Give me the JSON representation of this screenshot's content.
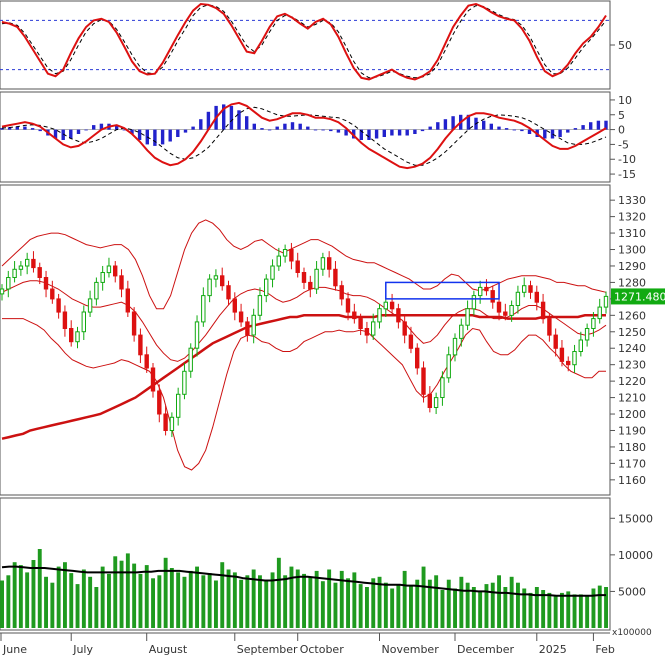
{
  "chart_data": [
    {
      "type": "line",
      "panel": "stochastic",
      "y_ticks": [
        50
      ],
      "ylim": [
        0,
        100
      ],
      "reference_lines": [
        20,
        80
      ],
      "series": [
        {
          "values": [
            78,
            76,
            72,
            60,
            45,
            30,
            15,
            12,
            20,
            40,
            58,
            72,
            80,
            82,
            78,
            65,
            48,
            30,
            18,
            14,
            15,
            28,
            45,
            62,
            78,
            92,
            100,
            99,
            95,
            88,
            74,
            58,
            42,
            40,
            55,
            72,
            85,
            88,
            83,
            76,
            70,
            78,
            82,
            75,
            60,
            40,
            22,
            10,
            8,
            12,
            16,
            20,
            14,
            10,
            8,
            12,
            18,
            32,
            52,
            72,
            86,
            98,
            100,
            96,
            90,
            85,
            82,
            80,
            70,
            55,
            35,
            18,
            12,
            16,
            26,
            40,
            52,
            60,
            72,
            86
          ]
        },
        {
          "values": [
            76,
            77,
            74,
            64,
            50,
            36,
            22,
            15,
            18,
            32,
            50,
            66,
            76,
            81,
            79,
            69,
            54,
            38,
            24,
            16,
            15,
            23,
            38,
            55,
            70,
            86,
            96,
            99,
            97,
            91,
            79,
            64,
            49,
            42,
            50,
            66,
            80,
            86,
            84,
            78,
            72,
            75,
            80,
            77,
            66,
            48,
            30,
            16,
            10,
            11,
            14,
            18,
            15,
            12,
            10,
            11,
            15,
            26,
            44,
            63,
            79,
            92,
            98,
            97,
            92,
            87,
            83,
            81,
            74,
            61,
            43,
            26,
            15,
            15,
            22,
            34,
            47,
            57,
            68,
            80
          ],
          "style": "dashed"
        }
      ]
    },
    {
      "type": "bar",
      "panel": "macd",
      "y_ticks": [
        10,
        5,
        0,
        -5,
        -10,
        -15
      ],
      "ylim": [
        -17,
        12
      ],
      "series": [
        {
          "values": [
            0.5,
            0.8,
            1,
            1,
            0.5,
            -0.5,
            -2,
            -3,
            -3.5,
            -3,
            -1.5,
            0,
            1.5,
            2,
            2,
            1.5,
            0,
            -1.5,
            -3.5,
            -5,
            -5.5,
            -5,
            -4,
            -2.5,
            -1,
            1,
            3.5,
            6,
            8,
            8.5,
            8,
            6.5,
            4.5,
            2,
            0.5,
            0,
            1,
            2,
            2.5,
            2,
            1,
            0,
            0,
            -0.5,
            -1,
            -2,
            -3,
            -3.5,
            -3.5,
            -3,
            -2.5,
            -2,
            -2,
            -2,
            -1.5,
            -0.5,
            1,
            2.5,
            3.5,
            4.5,
            5,
            5,
            4,
            3,
            2,
            1,
            0.5,
            0,
            -0.5,
            -1.5,
            -2.5,
            -3,
            -3,
            -2.5,
            -1,
            0.5,
            1.5,
            2.5,
            3,
            3
          ]
        },
        {
          "values": [
            1,
            1.5,
            2,
            2.5,
            2,
            1,
            -1,
            -3,
            -5,
            -6,
            -5.5,
            -4,
            -2,
            0,
            1,
            1.5,
            0.5,
            -1.5,
            -4,
            -7,
            -9.5,
            -11,
            -12,
            -11.5,
            -10,
            -7.5,
            -4,
            0,
            4,
            7,
            8.5,
            9,
            8,
            6,
            4,
            3,
            3.5,
            4.5,
            5.5,
            5.5,
            5,
            4,
            4,
            3.5,
            2.5,
            0.5,
            -2,
            -4.5,
            -6.5,
            -8,
            -9.5,
            -11,
            -12.5,
            -13,
            -12.5,
            -11.5,
            -9.5,
            -6.5,
            -3,
            0,
            2.5,
            4.5,
            5.5,
            5.5,
            5,
            4,
            3.5,
            3,
            2,
            0.5,
            -1.5,
            -3.5,
            -5.5,
            -6.5,
            -6.5,
            -5.5,
            -4,
            -2.5,
            -1,
            0.5
          ]
        },
        {
          "values": [
            0.5,
            0.7,
            1,
            1.4,
            1.6,
            1.4,
            0.8,
            0,
            -1.5,
            -3,
            -4,
            -4.5,
            -4,
            -3,
            -1.5,
            0,
            0.5,
            0,
            -1,
            -2.5,
            -4,
            -6,
            -8,
            -9.5,
            -10,
            -9.5,
            -8,
            -6,
            -3,
            0,
            3,
            5.5,
            7,
            7.5,
            7,
            6,
            5,
            4.5,
            4.5,
            4.8,
            5,
            4.8,
            4.5,
            4.2,
            4,
            3,
            1.5,
            -0.5,
            -2.5,
            -4.5,
            -6.5,
            -8,
            -9.5,
            -11,
            -12,
            -12,
            -11,
            -9.5,
            -7.5,
            -5,
            -2.5,
            0,
            2,
            3.5,
            4.5,
            5,
            4.8,
            4.5,
            4,
            3,
            1.5,
            0,
            -1.5,
            -3,
            -4.5,
            -5,
            -5,
            -4.5,
            -3.5,
            -2.5
          ],
          "style": "dashed"
        }
      ]
    },
    {
      "type": "candlestick",
      "panel": "price",
      "y_ticks": [
        1330,
        1320,
        1310,
        1300,
        1290,
        1280,
        1270,
        1260,
        1250,
        1240,
        1230,
        1220,
        1210,
        1200,
        1190,
        1180,
        1170,
        1160
      ],
      "ylim": [
        1152,
        1338
      ],
      "last_price_label": "1271.480",
      "highlight_box": {
        "x_range": [
          61,
          79
        ],
        "y_range": [
          1270,
          1280
        ]
      },
      "close": [
        1276,
        1283,
        1288,
        1290,
        1294,
        1289,
        1283,
        1276,
        1270,
        1262,
        1252,
        1244,
        1250,
        1262,
        1270,
        1280,
        1286,
        1290,
        1284,
        1276,
        1262,
        1248,
        1236,
        1228,
        1214,
        1200,
        1190,
        1198,
        1212,
        1226,
        1240,
        1256,
        1272,
        1282,
        1284,
        1278,
        1270,
        1262,
        1256,
        1248,
        1260,
        1272,
        1282,
        1290,
        1296,
        1300,
        1293,
        1286,
        1280,
        1276,
        1288,
        1295,
        1288,
        1278,
        1270,
        1262,
        1258,
        1252,
        1248,
        1256,
        1264,
        1268,
        1264,
        1256,
        1248,
        1240,
        1228,
        1212,
        1204,
        1210,
        1222,
        1236,
        1246,
        1254,
        1264,
        1272,
        1277,
        1275,
        1268,
        1262,
        1260,
        1266,
        1274,
        1278,
        1274,
        1268,
        1258,
        1248,
        1240,
        1232,
        1230,
        1238,
        1245,
        1252,
        1258,
        1265,
        1271.48
      ],
      "bollinger_upper": [
        1290,
        1294,
        1298,
        1302,
        1306,
        1308,
        1309,
        1310,
        1310,
        1309,
        1307,
        1305,
        1303,
        1302,
        1301,
        1302,
        1303,
        1303,
        1300,
        1294,
        1284,
        1272,
        1264,
        1264,
        1272,
        1286,
        1300,
        1310,
        1316,
        1318,
        1316,
        1312,
        1306,
        1302,
        1300,
        1302,
        1305,
        1306,
        1303,
        1300,
        1298,
        1300,
        1302,
        1304,
        1306,
        1306,
        1304,
        1302,
        1299,
        1296,
        1294,
        1293,
        1292,
        1292,
        1290,
        1288,
        1286,
        1284,
        1282,
        1279,
        1276,
        1276,
        1278,
        1282,
        1285,
        1284,
        1280,
        1276,
        1275,
        1276,
        1278,
        1280,
        1282,
        1283,
        1284,
        1284,
        1284,
        1283,
        1282,
        1280,
        1280,
        1279,
        1278,
        1278,
        1276,
        1275,
        1274
      ],
      "bollinger_mid": [
        1274,
        1276,
        1278,
        1280,
        1281,
        1281,
        1280,
        1278,
        1276,
        1273,
        1270,
        1268,
        1266,
        1265,
        1265,
        1266,
        1267,
        1268,
        1266,
        1262,
        1256,
        1249,
        1242,
        1237,
        1233,
        1232,
        1234,
        1238,
        1243,
        1248,
        1254,
        1260,
        1265,
        1270,
        1273,
        1275,
        1276,
        1275,
        1273,
        1270,
        1268,
        1269,
        1271,
        1274,
        1276,
        1277,
        1277,
        1276,
        1275,
        1273,
        1272,
        1272,
        1271,
        1269,
        1266,
        1263,
        1260,
        1257,
        1252,
        1247,
        1243,
        1244,
        1248,
        1254,
        1259,
        1262,
        1264,
        1264,
        1263,
        1260,
        1258,
        1258,
        1259,
        1261,
        1264,
        1266,
        1266,
        1264,
        1261,
        1258,
        1255,
        1252,
        1249,
        1248,
        1249,
        1251,
        1254
      ],
      "bollinger_lower": [
        1258,
        1258,
        1258,
        1258,
        1256,
        1254,
        1251,
        1246,
        1242,
        1237,
        1233,
        1231,
        1229,
        1228,
        1229,
        1230,
        1231,
        1233,
        1232,
        1230,
        1228,
        1226,
        1220,
        1210,
        1194,
        1178,
        1168,
        1166,
        1170,
        1178,
        1192,
        1208,
        1224,
        1238,
        1246,
        1248,
        1247,
        1244,
        1243,
        1240,
        1238,
        1238,
        1240,
        1244,
        1246,
        1248,
        1250,
        1250,
        1251,
        1250,
        1250,
        1251,
        1250,
        1246,
        1242,
        1238,
        1234,
        1230,
        1222,
        1214,
        1210,
        1212,
        1218,
        1226,
        1233,
        1240,
        1248,
        1252,
        1251,
        1244,
        1238,
        1236,
        1236,
        1239,
        1244,
        1248,
        1248,
        1245,
        1240,
        1236,
        1230,
        1226,
        1224,
        1222,
        1222,
        1226,
        1226
      ],
      "ma_long": [
        1185,
        1186,
        1187,
        1188,
        1190,
        1191,
        1192,
        1193,
        1194,
        1195,
        1196,
        1197,
        1198,
        1199,
        1200,
        1202,
        1204,
        1206,
        1208,
        1210,
        1213,
        1216,
        1219,
        1222,
        1225,
        1228,
        1231,
        1234,
        1237,
        1240,
        1243,
        1245,
        1247,
        1249,
        1251,
        1253,
        1254,
        1255,
        1256,
        1257,
        1258,
        1259,
        1259,
        1260,
        1260,
        1260,
        1260,
        1260,
        1260,
        1259,
        1259,
        1259,
        1259,
        1259,
        1260,
        1260,
        1260,
        1260,
        1260,
        1260,
        1260,
        1260,
        1260,
        1260,
        1260,
        1260,
        1260,
        1260,
        1259,
        1259,
        1259,
        1259,
        1258,
        1258,
        1258,
        1258,
        1258,
        1259,
        1259,
        1259,
        1259,
        1259,
        1259,
        1260,
        1260,
        1260,
        1260
      ]
    },
    {
      "type": "bar",
      "panel": "volume",
      "y_ticks": [
        15000,
        10000,
        5000
      ],
      "ylim": [
        0,
        17500
      ],
      "unit_label": "x100000",
      "x_tick_labels": [
        "June",
        "July",
        "August",
        "September",
        "October",
        "November",
        "December",
        "2025",
        "Feb"
      ],
      "x_tick_index": [
        0,
        11,
        23,
        37,
        47,
        60,
        72,
        85,
        94
      ],
      "volume": [
        6500,
        7200,
        9000,
        8600,
        7600,
        9300,
        10800,
        7000,
        6200,
        8400,
        9000,
        7500,
        6000,
        8000,
        7000,
        5600,
        8400,
        7400,
        9800,
        9200,
        10200,
        8800,
        7400,
        8600,
        6800,
        7200,
        9600,
        8200,
        7600,
        7000,
        7800,
        8400,
        7200,
        7500,
        6500,
        9000,
        8000,
        7600,
        6600,
        7200,
        8000,
        7200,
        6600,
        7600,
        9600,
        7200,
        8400,
        8000,
        7400,
        7000,
        7800,
        6400,
        8000,
        6200,
        7800,
        6800,
        7600,
        6000,
        5600,
        6800,
        7000,
        6200,
        5400,
        6000,
        7800,
        5800,
        6600,
        8400,
        6600,
        7200,
        5200,
        6600,
        5400,
        7000,
        6200,
        5600,
        5000,
        6000,
        6200,
        7200,
        5600,
        7000,
        6200,
        5400,
        4800,
        5600,
        5200,
        4800,
        4400,
        4800,
        5000,
        4600,
        4600,
        4400,
        5400,
        5800,
        5600
      ],
      "volume_ma": [
        8300,
        8400,
        8400,
        8300,
        8200,
        8200,
        8200,
        8100,
        8000,
        7900,
        7800,
        7700,
        7600,
        7600,
        7600,
        7600,
        7600,
        7600,
        7600,
        7600,
        7700,
        7700,
        7800,
        7800,
        7800,
        7800,
        7700,
        7600,
        7500,
        7400,
        7300,
        7200,
        7100,
        7000,
        6800,
        6700,
        6600,
        6500,
        6500,
        6600,
        6700,
        6900,
        7000,
        7000,
        6900,
        6800,
        6700,
        6600,
        6500,
        6400,
        6300,
        6200,
        6100,
        6000,
        5900,
        5900,
        5900,
        5800,
        5800,
        5700,
        5600,
        5500,
        5400,
        5300,
        5200,
        5100,
        5100,
        5000,
        5000,
        4900,
        4800,
        4800,
        4700,
        4600,
        4600,
        4500,
        4500,
        4500,
        4400,
        4400,
        4400,
        4400,
        4400,
        4400,
        4500,
        4500
      ]
    }
  ]
}
